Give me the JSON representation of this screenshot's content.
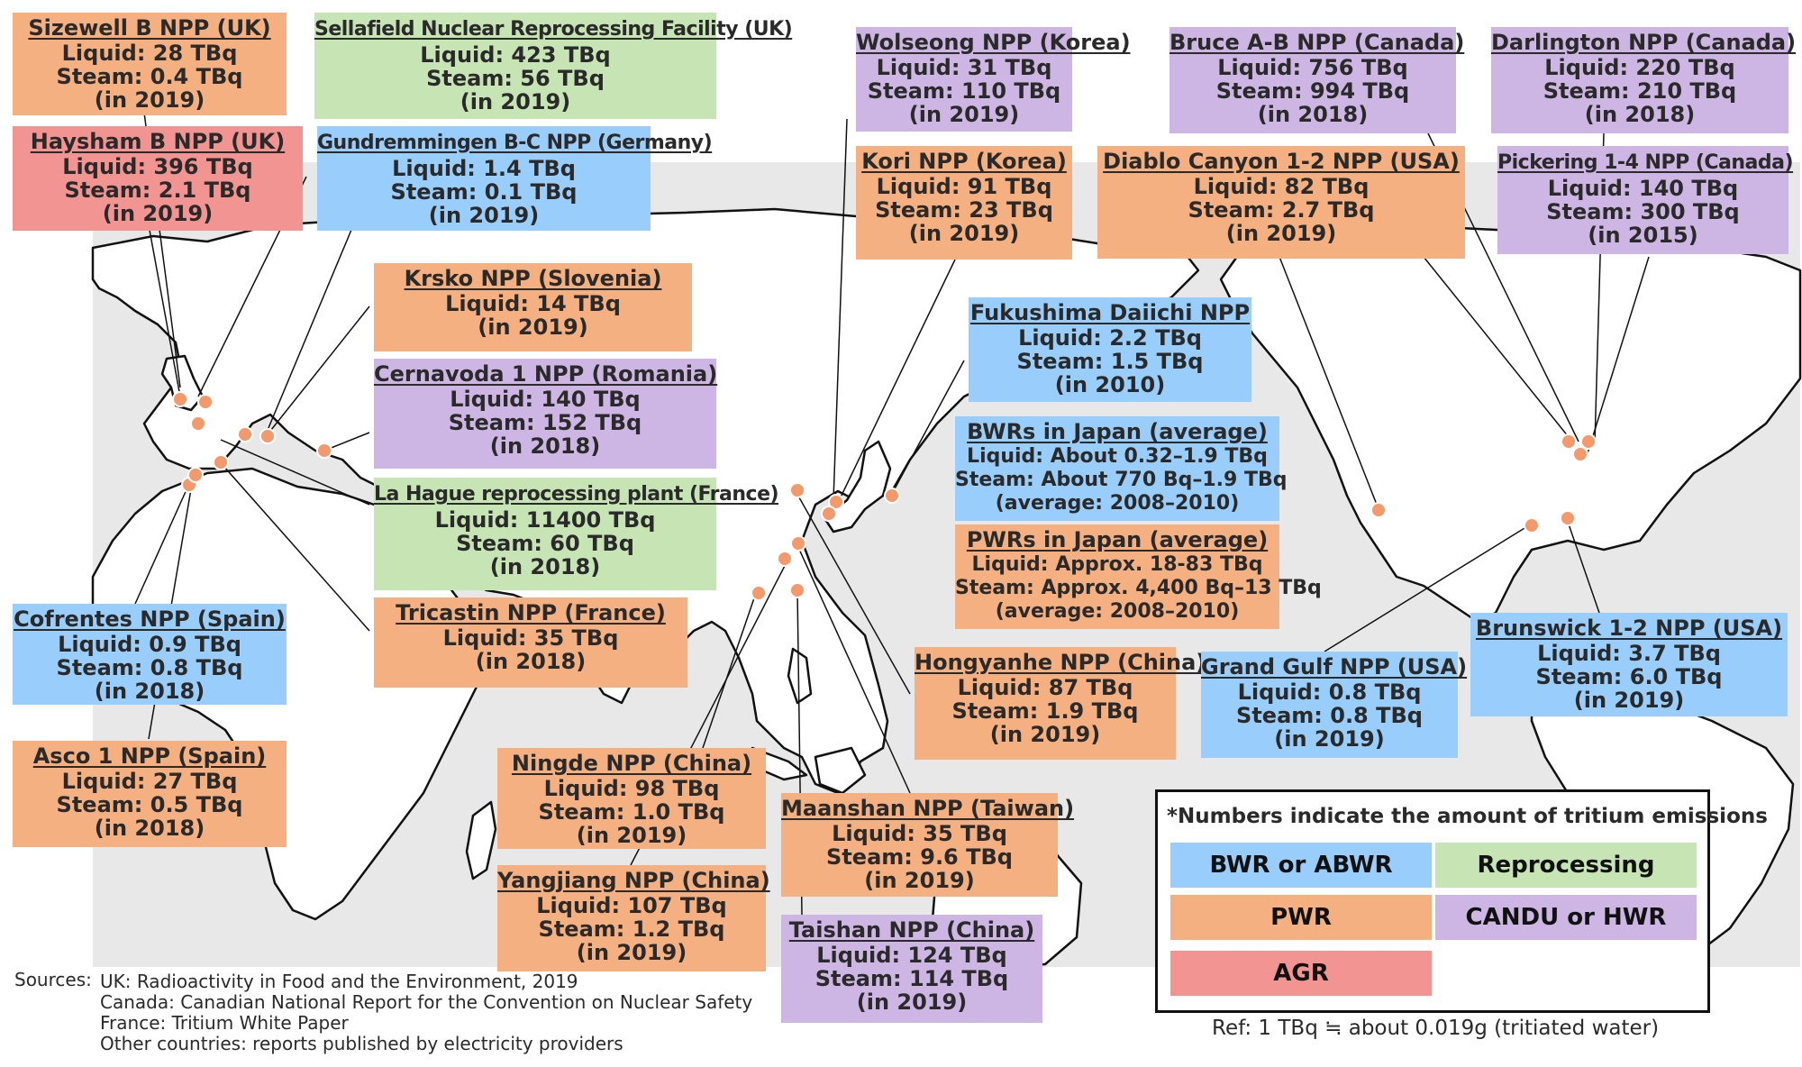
{
  "plants": [
    {
      "id": "sizewell",
      "cat": "pwr",
      "title": "Sizewell B NPP (UK)",
      "lines": [
        "Liquid: 28 TBq",
        "Steam: 0.4 TBq",
        "(in 2019)"
      ]
    },
    {
      "id": "sellafield",
      "cat": "rep",
      "title": "Sellafield Nuclear Reprocessing Facility (UK)",
      "lines": [
        "Liquid: 423 TBq",
        "Steam: 56 TBq",
        "(in 2019)"
      ]
    },
    {
      "id": "heysham",
      "cat": "agr",
      "title": "Haysham B NPP (UK)",
      "lines": [
        "Liquid: 396 TBq",
        "Steam: 2.1 TBq",
        "(in 2019)"
      ]
    },
    {
      "id": "gundremmingen",
      "cat": "bwr",
      "title": "Gundremmingen B-C NPP (Germany)",
      "lines": [
        "Liquid: 1.4 TBq",
        "Steam: 0.1 TBq",
        "(in 2019)"
      ]
    },
    {
      "id": "krsko",
      "cat": "pwr",
      "title": "Krsko NPP (Slovenia)",
      "lines": [
        "Liquid: 14 TBq",
        "(in 2019)"
      ]
    },
    {
      "id": "cernavoda",
      "cat": "cand",
      "title": "Cernavoda 1 NPP (Romania)",
      "lines": [
        "Liquid: 140 TBq",
        "Steam: 152 TBq",
        "(in 2018)"
      ]
    },
    {
      "id": "lahague",
      "cat": "rep",
      "title": "La Hague reprocessing plant (France)",
      "lines": [
        "Liquid: 11400 TBq",
        "Steam: 60 TBq",
        "(in 2018)"
      ]
    },
    {
      "id": "tricastin",
      "cat": "pwr",
      "title": "Tricastin NPP (France)",
      "lines": [
        "Liquid: 35 TBq",
        "(in 2018)"
      ]
    },
    {
      "id": "cofrentes",
      "cat": "bwr",
      "title": "Cofrentes NPP (Spain)",
      "lines": [
        "Liquid: 0.9 TBq",
        "Steam: 0.8 TBq",
        "(in 2018)"
      ]
    },
    {
      "id": "asco",
      "cat": "pwr",
      "title": "Asco 1 NPP (Spain)",
      "lines": [
        "Liquid: 27 TBq",
        "Steam: 0.5 TBq",
        "(in 2018)"
      ]
    },
    {
      "id": "wolseong",
      "cat": "cand",
      "title": "Wolseong NPP (Korea)",
      "lines": [
        "Liquid: 31 TBq",
        "Steam: 110 TBq",
        "(in 2019)"
      ]
    },
    {
      "id": "kori",
      "cat": "pwr",
      "title": "Kori NPP (Korea)",
      "lines": [
        "Liquid: 91 TBq",
        "Steam: 23 TBq",
        "(in 2019)"
      ]
    },
    {
      "id": "fukushima",
      "cat": "bwr",
      "title": "Fukushima Daiichi NPP",
      "lines": [
        "Liquid: 2.2 TBq",
        "Steam: 1.5 TBq",
        "(in 2010)"
      ]
    },
    {
      "id": "bwrjapan",
      "cat": "bwr",
      "title": "BWRs in Japan (average)",
      "lines": [
        "Liquid: About 0.32–1.9  TBq",
        "Steam: About 770 Bq–1.9 TBq",
        "(average: 2008–2010)"
      ]
    },
    {
      "id": "pwrjapan",
      "cat": "pwr",
      "title": "PWRs in Japan (average)",
      "lines": [
        "Liquid: Approx. 18-83  TBq",
        "Steam: Approx. 4,400 Bq–13 TBq",
        "(average: 2008–2010)"
      ]
    },
    {
      "id": "hongyanhe",
      "cat": "pwr",
      "title": "Hongyanhe NPP (China)",
      "lines": [
        "Liquid: 87 TBq",
        "Steam: 1.9 TBq",
        "(in 2019)"
      ]
    },
    {
      "id": "ningde",
      "cat": "pwr",
      "title": "Ningde NPP (China)",
      "lines": [
        "Liquid: 98 TBq",
        "Steam: 1.0 TBq",
        "(in 2019)"
      ]
    },
    {
      "id": "yangjiang",
      "cat": "pwr",
      "title": "Yangjiang NPP (China)",
      "lines": [
        "Liquid: 107 TBq",
        "Steam: 1.2 TBq",
        "(in 2019)"
      ]
    },
    {
      "id": "maanshan",
      "cat": "pwr",
      "title": "Maanshan NPP (Taiwan)",
      "lines": [
        "Liquid: 35 TBq",
        "Steam: 9.6 TBq",
        "(in 2019)"
      ]
    },
    {
      "id": "taishan",
      "cat": "cand",
      "title": "Taishan NPP (China)",
      "lines": [
        "Liquid: 124 TBq",
        "Steam: 114 TBq",
        "(in 2019)"
      ]
    },
    {
      "id": "bruce",
      "cat": "cand",
      "title": "Bruce A-B NPP (Canada)",
      "lines": [
        "Liquid: 756 TBq",
        "Steam: 994 TBq",
        "(in 2018)"
      ]
    },
    {
      "id": "darlington",
      "cat": "cand",
      "title": "Darlington NPP (Canada)",
      "lines": [
        "Liquid: 220 TBq",
        "Steam: 210 TBq",
        "(in 2018)"
      ]
    },
    {
      "id": "diablo",
      "cat": "pwr",
      "title": "Diablo Canyon 1-2 NPP (USA)",
      "lines": [
        "Liquid: 82 TBq",
        "Steam: 2.7 TBq",
        "(in 2019)"
      ]
    },
    {
      "id": "pickering",
      "cat": "cand",
      "title": "Pickering 1-4 NPP (Canada)",
      "lines": [
        "Liquid: 140 TBq",
        "Steam: 300 TBq",
        "(in 2015)"
      ]
    },
    {
      "id": "grandgulf",
      "cat": "bwr",
      "title": "Grand Gulf NPP (USA)",
      "lines": [
        "Liquid: 0.8 TBq",
        "Steam: 0.8 TBq",
        "(in 2019)"
      ]
    },
    {
      "id": "brunswick",
      "cat": "bwr",
      "title": "Brunswick 1-2 NPP (USA)",
      "lines": [
        "Liquid: 3.7 TBq",
        "Steam: 6.0 TBq",
        "(in 2019)"
      ]
    }
  ],
  "legend": {
    "note": "*Numbers indicate the amount of tritium emissions",
    "items": [
      {
        "label": "BWR or ABWR",
        "color": "#99cdfb"
      },
      {
        "label": "Reprocessing facility",
        "color": "#c6e4b4"
      },
      {
        "label": "PWR",
        "color": "#f5b081"
      },
      {
        "label": "CANDU or HWR",
        "color": "#cdb6e3"
      },
      {
        "label": "AGR",
        "color": "#f29592"
      }
    ]
  },
  "sources": {
    "label": "Sources:",
    "lines": [
      "UK: Radioactivity in Food and the Environment, 2019",
      "Canada: Canadian National Report for the Convention on Nuclear Safety",
      "France: Tritium White Paper",
      "Other countries: reports published by electricity providers"
    ]
  },
  "ref": "Ref: 1 TBq ≒ about 0.019g (tritiated water)",
  "colors": {
    "marker": "#f29a6c",
    "map_bg": "#e8e8e8",
    "land": "#ffffff"
  }
}
